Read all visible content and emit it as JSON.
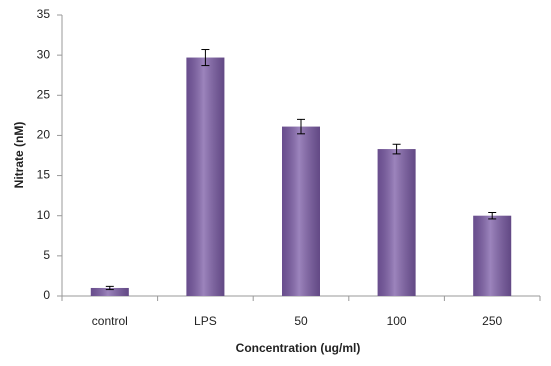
{
  "chart_data": {
    "type": "bar",
    "x_label": "Concentration (ug/ml)",
    "y_label": "Nitrate (nM)",
    "categories": [
      "control",
      "LPS",
      "50",
      "100",
      "250"
    ],
    "values": [
      1.0,
      29.7,
      21.1,
      18.3,
      10.0
    ],
    "errors": [
      0.2,
      1.0,
      0.9,
      0.6,
      0.4
    ],
    "color": "#7b5ba6",
    "ylim": [
      0,
      35
    ],
    "yticks": [
      0,
      5,
      10,
      15,
      20,
      25,
      30,
      35
    ],
    "grid": false
  }
}
